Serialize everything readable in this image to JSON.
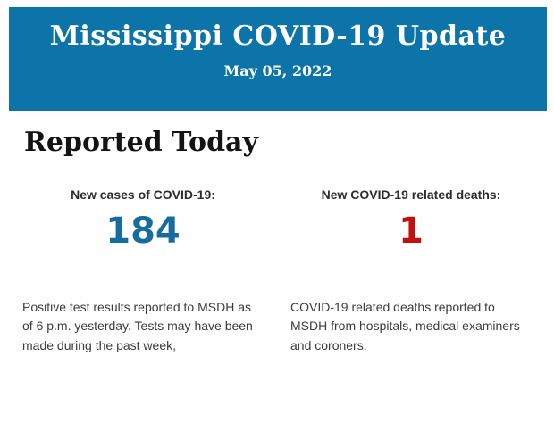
{
  "header": {
    "title": "Mississippi COVID-19 Update",
    "date": "May 05, 2022",
    "background_color": "#0d74aa",
    "text_color": "#ffffff"
  },
  "section": {
    "title": "Reported Today"
  },
  "stats": [
    {
      "label": "New cases of COVID-19:",
      "value": "184",
      "value_color": "#176c9f",
      "description": "Positive test results reported to MSDH as of 6 p.m. yesterday. Tests may have been made during the past week,"
    },
    {
      "label": "New COVID-19 related deaths:",
      "value": "1",
      "value_color": "#c01010",
      "description": "COVID-19 related deaths reported to MSDH from hospitals, medical examiners and coroners."
    }
  ]
}
